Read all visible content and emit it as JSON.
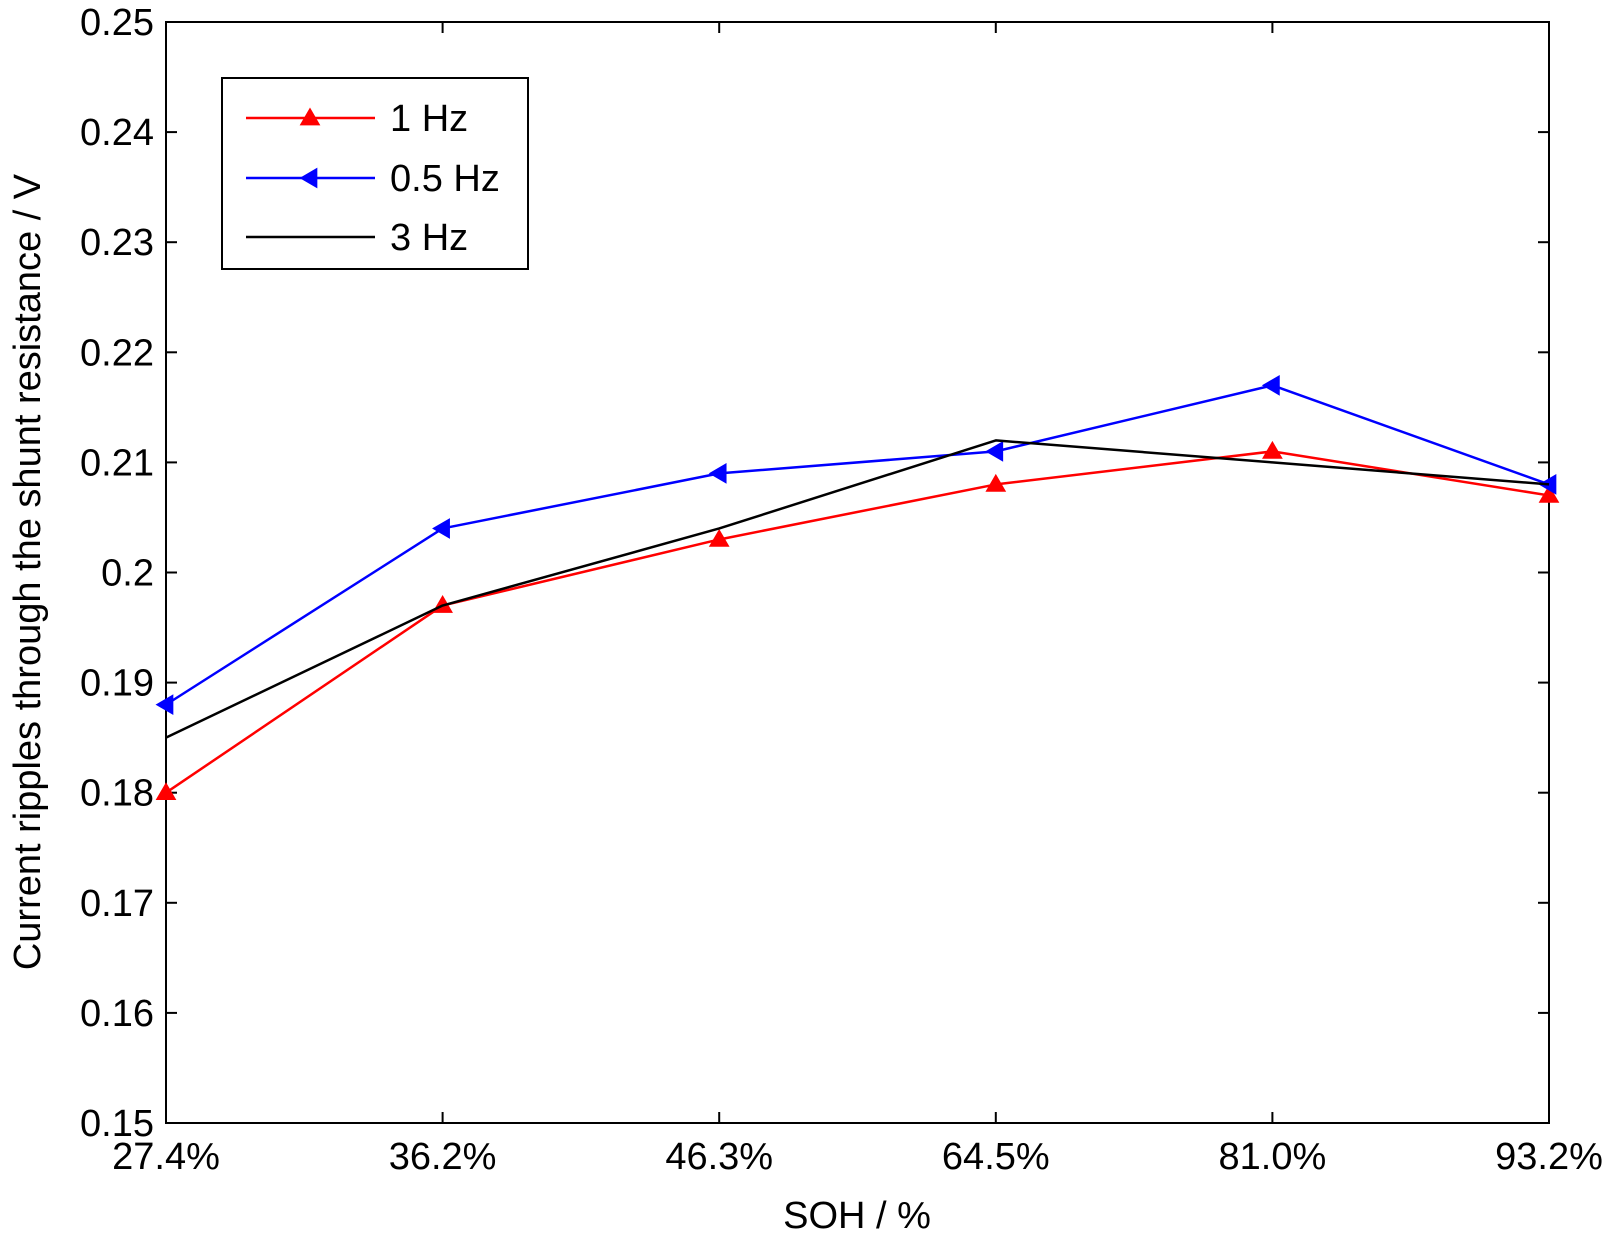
{
  "chart_data": {
    "type": "line",
    "title": "",
    "xlabel": "SOH / %",
    "ylabel": "Current ripples through the shunt resistance / V",
    "categories": [
      "27.4%",
      "36.2%",
      "46.3%",
      "64.5%",
      "81.0%",
      "93.2%"
    ],
    "ylim": [
      0.15,
      0.25
    ],
    "yticks": [
      0.15,
      0.16,
      0.17,
      0.18,
      0.19,
      0.2,
      0.21,
      0.22,
      0.23,
      0.24,
      0.25
    ],
    "ytick_labels": [
      "0.15",
      "0.16",
      "0.17",
      "0.18",
      "0.19",
      "0.2",
      "0.21",
      "0.22",
      "0.23",
      "0.24",
      "0.25"
    ],
    "grid": false,
    "legend_position": "top-left",
    "series": [
      {
        "name": "1 Hz",
        "color": "#ff0000",
        "marker": "triangle-up",
        "values": [
          0.18,
          0.197,
          0.203,
          0.208,
          0.211,
          0.207
        ]
      },
      {
        "name": "0.5 Hz",
        "color": "#0000ff",
        "marker": "triangle-left",
        "values": [
          0.188,
          0.204,
          0.209,
          0.211,
          0.217,
          0.208
        ]
      },
      {
        "name": "3 Hz",
        "color": "#000000",
        "marker": "none",
        "values": [
          0.185,
          0.197,
          0.204,
          0.212,
          0.21,
          0.208
        ]
      }
    ]
  }
}
